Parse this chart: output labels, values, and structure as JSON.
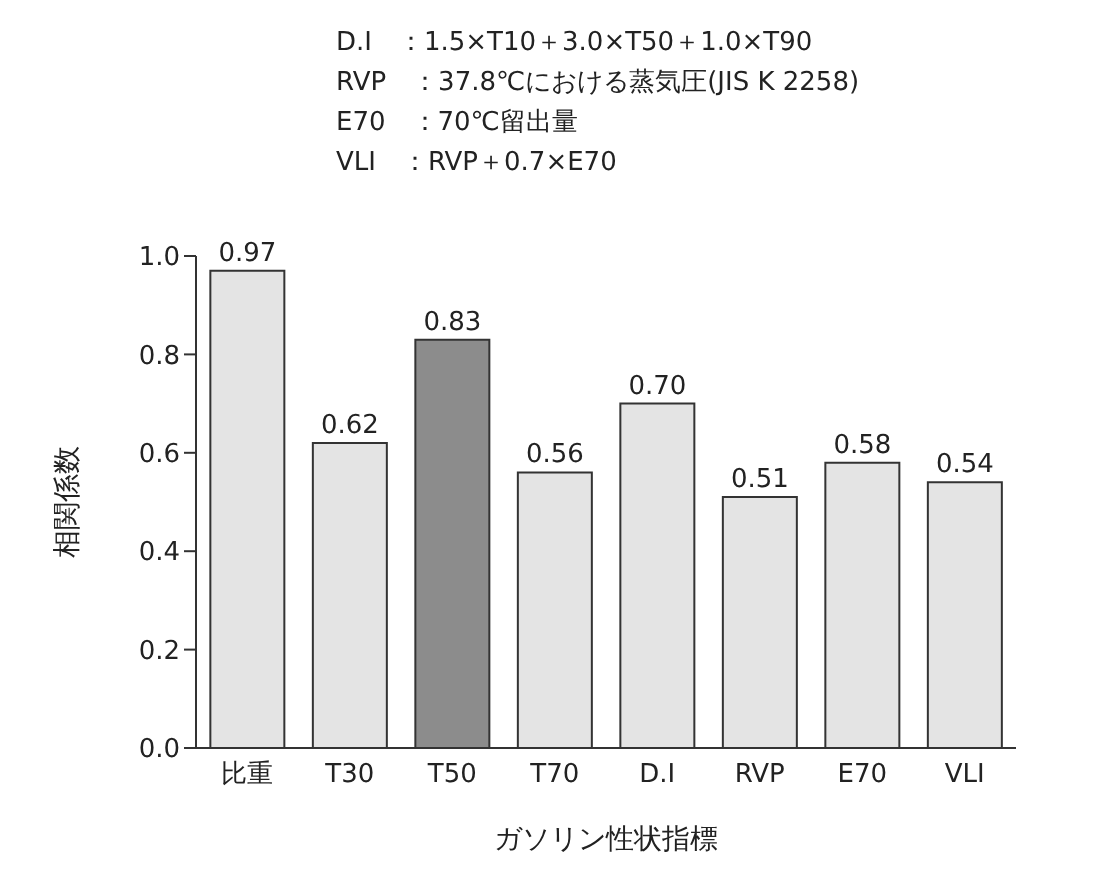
{
  "chart_data": {
    "type": "bar",
    "annotations": [
      "D.I　：1.5×T10＋3.0×T50＋1.0×T90",
      "RVP　：37.8℃における蒸気圧(JIS K 2258)",
      "E70　：70℃留出量",
      "VLI　：RVP＋0.7×E70"
    ],
    "xlabel": "ガソリン性状指標",
    "ylabel": "相関係数",
    "categories": [
      "比重",
      "T30",
      "T50",
      "T70",
      "D.I",
      "RVP",
      "E70",
      "VLI"
    ],
    "values": [
      0.97,
      0.62,
      0.83,
      0.56,
      0.7,
      0.51,
      0.58,
      0.54
    ],
    "colors": [
      "#e4e4e4",
      "#e4e4e4",
      "#8c8c8c",
      "#e4e4e4",
      "#e4e4e4",
      "#e4e4e4",
      "#e4e4e4",
      "#e4e4e4"
    ],
    "value_labels": [
      "0.97",
      "0.62",
      "0.83",
      "0.56",
      "0.70",
      "0.51",
      "0.58",
      "0.54"
    ],
    "ylim": [
      0,
      1
    ],
    "yticks": [
      {
        "value": 0,
        "label": "0.0"
      },
      {
        "value": 0.2,
        "label": "0.2"
      },
      {
        "value": 0.4,
        "label": "0.4"
      },
      {
        "value": 0.6,
        "label": "0.6"
      },
      {
        "value": 0.8,
        "label": "0.8"
      },
      {
        "value": 1,
        "label": "1.0"
      }
    ],
    "grid": false,
    "legend": false
  }
}
